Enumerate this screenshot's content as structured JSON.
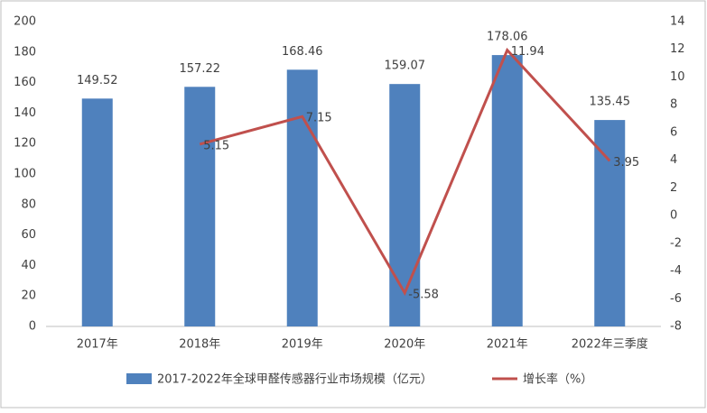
{
  "chart_data": {
    "type": "combo",
    "categories": [
      "2017年",
      "2018年",
      "2019年",
      "2020年",
      "2021年",
      "2022年三季度"
    ],
    "series": [
      {
        "name": "2017-2022年全球甲醛传感器行业市场规模（亿元）",
        "type": "bar",
        "color": "#4f81bd",
        "values": [
          149.52,
          157.22,
          168.46,
          159.07,
          178.06,
          135.45
        ]
      },
      {
        "name": "增长率（%）",
        "type": "line",
        "axis": "y2",
        "color": "#c0504d",
        "values": [
          null,
          5.15,
          7.15,
          -5.58,
          11.94,
          3.95
        ]
      }
    ],
    "ylim": [
      0,
      200
    ],
    "yticks": [
      0,
      20,
      40,
      60,
      80,
      100,
      120,
      140,
      160,
      180,
      200
    ],
    "y2lim": [
      -8,
      14
    ],
    "y2ticks": [
      -8,
      -6,
      -4,
      -2,
      0,
      2,
      4,
      6,
      8,
      10,
      12,
      14
    ],
    "grid": false,
    "legend": "bottom"
  }
}
